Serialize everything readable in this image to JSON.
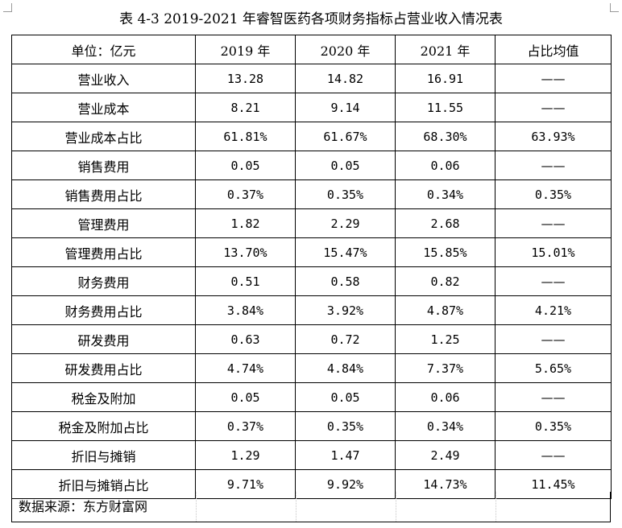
{
  "title": "表 4-3 2019-2021 年睿智医药各项财务指标占营业收入情况表",
  "table": {
    "headers": [
      "单位：亿元",
      "2019 年",
      "2020 年",
      "2021 年",
      "占比均值"
    ],
    "rows": [
      [
        "营业收入",
        "13.28",
        "14.82",
        "16.91",
        "——"
      ],
      [
        "营业成本",
        "8.21",
        "9.14",
        "11.55",
        "——"
      ],
      [
        "营业成本占比",
        "61.81%",
        "61.67%",
        "68.30%",
        "63.93%"
      ],
      [
        "销售费用",
        "0.05",
        "0.05",
        "0.06",
        "——"
      ],
      [
        "销售费用占比",
        "0.37%",
        "0.35%",
        "0.34%",
        "0.35%"
      ],
      [
        "管理费用",
        "1.82",
        "2.29",
        "2.68",
        "——"
      ],
      [
        "管理费用占比",
        "13.70%",
        "15.47%",
        "15.85%",
        "15.01%"
      ],
      [
        "财务费用",
        "0.51",
        "0.58",
        "0.82",
        "——"
      ],
      [
        "财务费用占比",
        "3.84%",
        "3.92%",
        "4.87%",
        "4.21%"
      ],
      [
        "研发费用",
        "0.63",
        "0.72",
        "1.25",
        "——"
      ],
      [
        "研发费用占比",
        "4.74%",
        "4.84%",
        "7.37%",
        "5.65%"
      ],
      [
        "税金及附加",
        "0.05",
        "0.05",
        "0.06",
        "——"
      ],
      [
        "税金及附加占比",
        "0.37%",
        "0.35%",
        "0.34%",
        "0.35%"
      ],
      [
        "折旧与摊销",
        "1.29",
        "1.47",
        "2.49",
        "——"
      ],
      [
        "折旧与摊销占比",
        "9.71%",
        "9.92%",
        "14.73%",
        "11.45%"
      ]
    ]
  },
  "source": "数据来源：东方财富网"
}
